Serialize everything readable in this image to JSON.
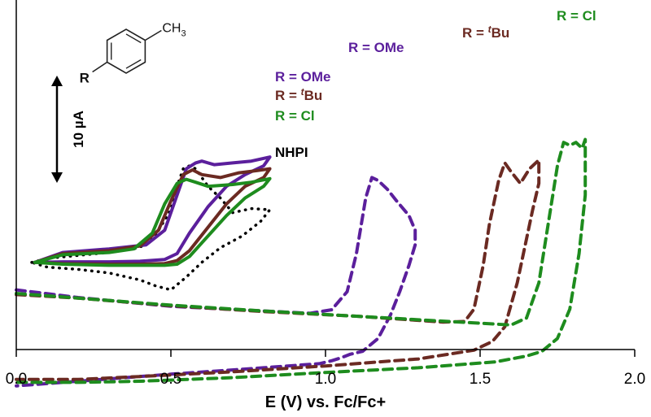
{
  "chart_data": {
    "type": "line",
    "title": "",
    "xlabel": "E (V) vs. Fc/Fc+",
    "ylabel": "",
    "xlim": [
      0.0,
      2.0
    ],
    "x_tick_labels": [
      "0.0",
      "0.5",
      "1.0",
      "1.5",
      "2.0"
    ],
    "x_ticks": [
      0.0,
      0.5,
      1.0,
      1.5,
      2.0
    ],
    "grid": false,
    "legend": "none",
    "scale_bar": {
      "label": "10 µA",
      "current_uA": 10
    },
    "structure": {
      "substituent_label": "R",
      "methyl_label": "CH",
      "methyl_subscript": "3"
    },
    "annotations": [
      {
        "text": "R = OMe",
        "prefix": "R = ",
        "main": "OMe",
        "color": "#5B1F9C"
      },
      {
        "text": "R = tBu",
        "prefix": "R = ",
        "sup": "t",
        "main": "Bu",
        "color": "#6B2A22"
      },
      {
        "text": "R = Cl",
        "prefix": "R = ",
        "main": "Cl",
        "color": "#1E8C1E"
      },
      {
        "text": "R = OMe",
        "prefix": "R = ",
        "main": "OMe",
        "color": "#5B1F9C"
      },
      {
        "text": "R = tBu",
        "prefix": "R = ",
        "sup": "t",
        "main": "Bu",
        "color": "#6B2A22"
      },
      {
        "text": "R = Cl",
        "prefix": "R = ",
        "main": "Cl",
        "color": "#1E8C1E"
      },
      {
        "text": "NHPI",
        "color": "#000000"
      }
    ],
    "series": [
      {
        "name": "R = OMe",
        "style": "dashed",
        "color": "#5B1F9C",
        "x": [
          0.0,
          0.2,
          0.5,
          0.8,
          0.95,
          1.02,
          1.07,
          1.1,
          1.13,
          1.15,
          1.17,
          1.2,
          1.23,
          1.27,
          1.29,
          1.29,
          1.27,
          1.24,
          1.21,
          1.17,
          1.12,
          1.08,
          1.05,
          1.02,
          0.98,
          0.8,
          0.5,
          0.2,
          0.0
        ],
        "y": [
          -1.2,
          -2.5,
          -4.0,
          -4.8,
          -5.2,
          -4.6,
          -1.5,
          5.0,
          14.5,
          18.0,
          17.5,
          16.0,
          14.0,
          11.5,
          9.0,
          6.5,
          3.0,
          -1.5,
          -5.5,
          -9.5,
          -11.7,
          -12.2,
          -12.8,
          -13.3,
          -13.8,
          -14.5,
          -15.6,
          -16.8,
          -17.6
        ]
      },
      {
        "name": "R = tBu",
        "style": "dashed",
        "color": "#6B2A22",
        "x": [
          0.0,
          0.2,
          0.5,
          0.8,
          1.1,
          1.38,
          1.45,
          1.48,
          1.51,
          1.53,
          1.56,
          1.58,
          1.6,
          1.63,
          1.66,
          1.69,
          1.69,
          1.67,
          1.65,
          1.62,
          1.58,
          1.54,
          1.48,
          1.3,
          1.0,
          0.7,
          0.4,
          0.2,
          0.0
        ],
        "y": [
          -2.0,
          -2.6,
          -3.9,
          -4.9,
          -5.7,
          -6.7,
          -6.6,
          -4.5,
          3.0,
          10.0,
          17.5,
          20.5,
          19.0,
          17.0,
          19.5,
          21.0,
          17.0,
          12.5,
          7.5,
          0.0,
          -7.5,
          -10.0,
          -11.5,
          -13.0,
          -14.2,
          -15.2,
          -16.0,
          -16.5,
          -16.5
        ]
      },
      {
        "name": "R = Cl",
        "style": "dashed",
        "color": "#1E8C1E",
        "x": [
          0.0,
          0.2,
          0.5,
          0.8,
          1.1,
          1.4,
          1.6,
          1.65,
          1.69,
          1.72,
          1.75,
          1.77,
          1.79,
          1.81,
          1.83,
          1.84,
          1.84,
          1.82,
          1.79,
          1.75,
          1.7,
          1.65,
          1.55,
          1.3,
          1.0,
          0.7,
          0.4,
          0.2,
          0.0
        ],
        "y": [
          -1.8,
          -2.6,
          -3.8,
          -4.8,
          -5.7,
          -6.6,
          -7.2,
          -6.0,
          0.0,
          10.0,
          20.0,
          24.0,
          23.5,
          24.0,
          23.0,
          24.5,
          15.0,
          5.0,
          -4.5,
          -9.5,
          -11.7,
          -12.5,
          -13.5,
          -14.5,
          -15.3,
          -16.2,
          -16.8,
          -17.0,
          -17.0
        ]
      },
      {
        "name": "NHPI",
        "style": "dotted",
        "color": "#000000",
        "x": [
          0.05,
          0.1,
          0.2,
          0.3,
          0.38,
          0.42,
          0.44,
          0.46,
          0.5,
          0.52,
          0.54,
          0.56,
          0.58,
          0.62,
          0.66,
          0.7,
          0.76,
          0.82,
          0.79,
          0.73,
          0.66,
          0.6,
          0.55,
          0.5,
          0.45,
          0.4,
          0.3,
          0.2,
          0.1,
          0.05
        ],
        "y": [
          3.5,
          4.2,
          4.7,
          5.2,
          5.8,
          6.5,
          7.5,
          9.0,
          12.5,
          16.5,
          19.5,
          20.0,
          19.5,
          16.5,
          14.5,
          12.0,
          12.7,
          12.5,
          10.5,
          8.0,
          6.0,
          3.5,
          1.0,
          -1.2,
          -0.5,
          0.5,
          1.7,
          2.3,
          2.7,
          3.5
        ]
      },
      {
        "name": "R = OMe",
        "style": "solid",
        "color": "#5B1F9C",
        "x": [
          0.06,
          0.15,
          0.3,
          0.42,
          0.48,
          0.52,
          0.55,
          0.58,
          0.6,
          0.64,
          0.7,
          0.76,
          0.82,
          0.8,
          0.74,
          0.68,
          0.62,
          0.56,
          0.52,
          0.48,
          0.4,
          0.3,
          0.15,
          0.06
        ],
        "y": [
          3.5,
          5.2,
          5.8,
          6.5,
          9.0,
          15.0,
          19.5,
          20.5,
          20.8,
          20.2,
          20.5,
          20.8,
          21.5,
          20.0,
          18.5,
          16.5,
          13.0,
          8.5,
          5.0,
          4.0,
          3.7,
          3.6,
          3.6,
          3.5
        ]
      },
      {
        "name": "R = tBu",
        "style": "solid",
        "color": "#6B2A22",
        "x": [
          0.06,
          0.15,
          0.3,
          0.4,
          0.46,
          0.5,
          0.54,
          0.57,
          0.6,
          0.66,
          0.72,
          0.78,
          0.82,
          0.8,
          0.74,
          0.68,
          0.62,
          0.56,
          0.52,
          0.48,
          0.4,
          0.3,
          0.15,
          0.06
        ],
        "y": [
          3.5,
          5.0,
          5.5,
          6.3,
          9.0,
          14.0,
          18.5,
          19.3,
          18.5,
          18.0,
          18.8,
          19.2,
          19.5,
          18.0,
          16.5,
          13.5,
          9.5,
          5.5,
          3.8,
          3.3,
          3.2,
          3.2,
          3.3,
          3.5
        ]
      },
      {
        "name": "R = Cl",
        "style": "solid",
        "color": "#1E8C1E",
        "x": [
          0.06,
          0.15,
          0.3,
          0.38,
          0.44,
          0.48,
          0.52,
          0.55,
          0.58,
          0.62,
          0.7,
          0.76,
          0.82,
          0.8,
          0.74,
          0.68,
          0.62,
          0.56,
          0.52,
          0.48,
          0.4,
          0.3,
          0.15,
          0.06
        ],
        "y": [
          3.5,
          4.8,
          5.2,
          5.8,
          8.5,
          13.5,
          17.0,
          17.7,
          17.2,
          16.5,
          16.8,
          17.2,
          17.8,
          16.5,
          14.5,
          11.5,
          8.0,
          4.5,
          3.2,
          3.0,
          3.0,
          3.0,
          3.2,
          3.5
        ]
      }
    ]
  }
}
